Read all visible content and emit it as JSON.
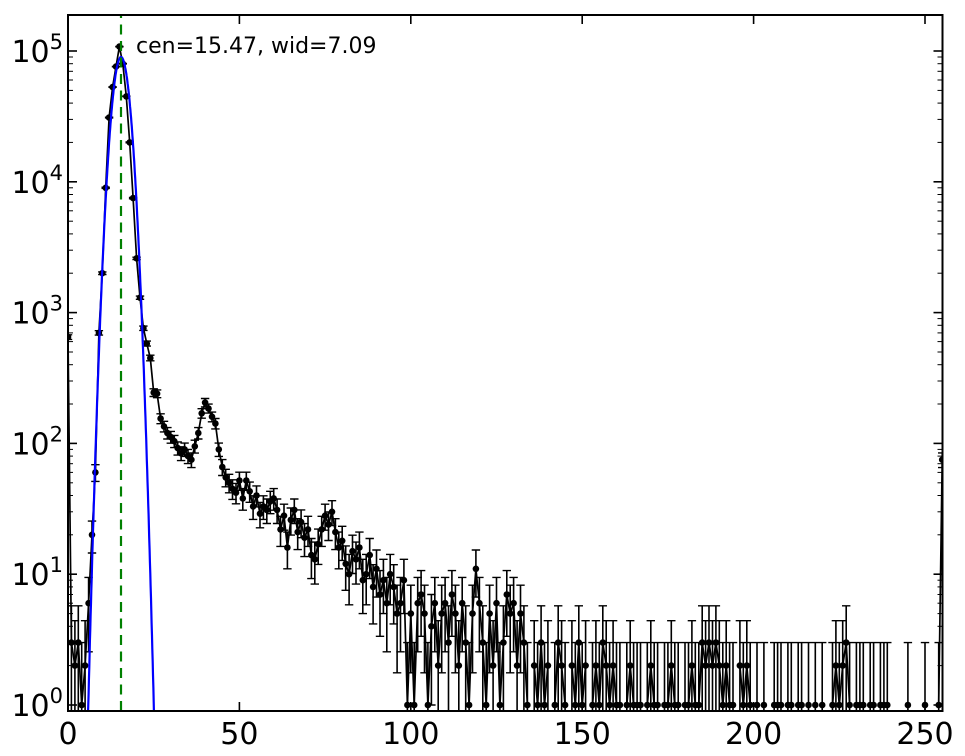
{
  "figure": {
    "background": "#ffffff",
    "frame_color": "#000000"
  },
  "chart_data": {
    "type": "line",
    "subtype": "errorbar-spectrum-with-gaussian-fit",
    "title": "",
    "xlabel": "",
    "ylabel": "",
    "x_scale": "linear",
    "y_scale": "log",
    "xlim": [
      0,
      255
    ],
    "ylim": [
      0.88,
      190000
    ],
    "grid": false,
    "legend": null,
    "x_ticks": [
      0,
      50,
      100,
      150,
      200,
      250
    ],
    "x_tick_labels": [
      "0",
      "50",
      "100",
      "150",
      "200",
      "250"
    ],
    "y_tick_exponents": [
      0,
      1,
      2,
      3,
      4,
      5
    ],
    "y_tick_base": "10",
    "annotation": {
      "text": "cen=15.47, wid=7.09",
      "color": "#008000"
    },
    "series": [
      {
        "name": "spectrum-data",
        "style": "errorbar",
        "color": "#000000",
        "marker": "circle",
        "x_is_channel_index": true,
        "error_model": "sqrt(n)+1, lower clipped at axis bottom",
        "counts": [
          650,
          3,
          2,
          3,
          1,
          2,
          6,
          20,
          60,
          700,
          2000,
          9000,
          31000,
          53000,
          76000,
          108000,
          80000,
          45000,
          20000,
          7500,
          2600,
          1300,
          760,
          580,
          450,
          245,
          240,
          155,
          135,
          120,
          112,
          104,
          92,
          84,
          90,
          80,
          75,
          95,
          120,
          170,
          205,
          185,
          160,
          142,
          90,
          66,
          55,
          50,
          45,
          42,
          52,
          38,
          52,
          43,
          33,
          40,
          29,
          33,
          31,
          36,
          38,
          31,
          22,
          28,
          16,
          26,
          31,
          21,
          25,
          19,
          22,
          14,
          13,
          17,
          22,
          28,
          24,
          30,
          21,
          16,
          18,
          12,
          10,
          15,
          13,
          16,
          9,
          10,
          14,
          8,
          11,
          7,
          9,
          6,
          10,
          8,
          5,
          6,
          9,
          1,
          5,
          1,
          6,
          7,
          5,
          1,
          4,
          6,
          2,
          5,
          6,
          3,
          7,
          5,
          2,
          6,
          3,
          1,
          5,
          11,
          6,
          3,
          1,
          5,
          2,
          6,
          1,
          3,
          7,
          5,
          6,
          2,
          5,
          3,
          1,
          0,
          2,
          1,
          3,
          1,
          2,
          0,
          1,
          3,
          2,
          1,
          0,
          2,
          1,
          3,
          1,
          2,
          0,
          1,
          2,
          1,
          3,
          2,
          1,
          2,
          1,
          1,
          0,
          1,
          2,
          1,
          1,
          1,
          0,
          1,
          2,
          1,
          1,
          0,
          1,
          1,
          2,
          1,
          1,
          0,
          1,
          1,
          2,
          1,
          1,
          3,
          2,
          3,
          2,
          3,
          2,
          1,
          2,
          1,
          1,
          0,
          2,
          1,
          2,
          1,
          0,
          1,
          0,
          1,
          0,
          0,
          1,
          1,
          1,
          0,
          1,
          1,
          0,
          1,
          1,
          0,
          1,
          0,
          1,
          0,
          1,
          0,
          0,
          1,
          2,
          1,
          2,
          3,
          1,
          0,
          1,
          1,
          1,
          0,
          1,
          1,
          0,
          1,
          1,
          1,
          0,
          0,
          0,
          0,
          0,
          1,
          0,
          0,
          0,
          0,
          1,
          0,
          0,
          0,
          1,
          75
        ]
      },
      {
        "name": "gaussian-fit",
        "style": "solid-line",
        "color": "#0000ff",
        "params": {
          "amplitude": 90000,
          "center": 15.47,
          "sigma": 2.0
        }
      },
      {
        "name": "fit-center-line",
        "style": "dashed-vertical-line",
        "color": "#008000",
        "x": 15.47
      }
    ]
  }
}
